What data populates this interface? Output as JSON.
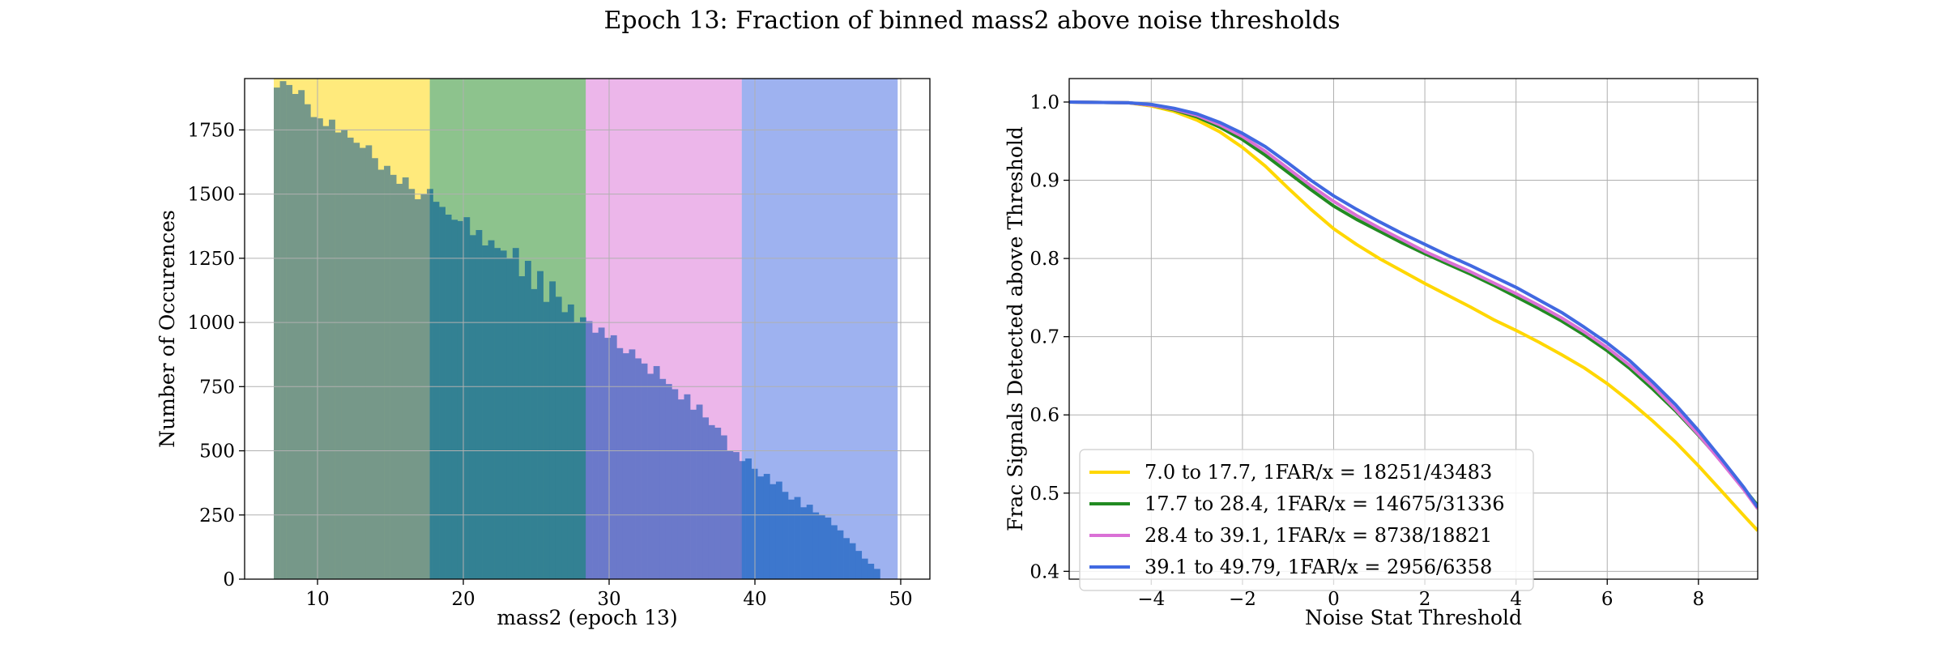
{
  "suptitle": "Epoch 13: Fraction of binned mass2 above noise thresholds",
  "chart_data": [
    {
      "type": "bar",
      "subtype": "histogram",
      "xlabel": "mass2 (epoch 13)",
      "ylabel": "Number of Occurences",
      "xlim": [
        5,
        52
      ],
      "ylim": [
        0,
        1950
      ],
      "xticks": [
        10,
        20,
        30,
        40,
        50
      ],
      "yticks": [
        0,
        250,
        500,
        750,
        1000,
        1250,
        1500,
        1750
      ],
      "grid": true,
      "bin_start": 7.0,
      "bin_width": 0.42,
      "bar_color": "#3b7dc4",
      "values": [
        1915,
        1940,
        1925,
        1890,
        1905,
        1850,
        1800,
        1795,
        1765,
        1790,
        1740,
        1750,
        1720,
        1700,
        1680,
        1690,
        1640,
        1595,
        1610,
        1575,
        1540,
        1565,
        1520,
        1480,
        1500,
        1520,
        1470,
        1450,
        1420,
        1400,
        1395,
        1410,
        1340,
        1360,
        1300,
        1320,
        1290,
        1280,
        1250,
        1290,
        1180,
        1240,
        1130,
        1200,
        1080,
        1160,
        1100,
        1040,
        1070,
        1000,
        1020,
        1005,
        960,
        980,
        940,
        950,
        900,
        880,
        895,
        860,
        840,
        800,
        830,
        780,
        760,
        740,
        700,
        720,
        660,
        680,
        630,
        600,
        590,
        560,
        500,
        495,
        460,
        470,
        430,
        400,
        410,
        370,
        380,
        340,
        310,
        320,
        280,
        290,
        260,
        250,
        240,
        210,
        190,
        160,
        140,
        110,
        80,
        60,
        40
      ],
      "bands": [
        {
          "from": 7.0,
          "to": 17.7,
          "color": "#ffd700"
        },
        {
          "from": 17.7,
          "to": 28.4,
          "color": "#228b22"
        },
        {
          "from": 28.4,
          "to": 39.1,
          "color": "#da70d6"
        },
        {
          "from": 39.1,
          "to": 49.79,
          "color": "#4169e1"
        }
      ]
    },
    {
      "type": "line",
      "xlabel": "Noise Stat Threshold",
      "ylabel": "Frac Signals Detected above Threshold",
      "xlim": [
        -5.8,
        9.3
      ],
      "ylim": [
        0.39,
        1.03
      ],
      "xticks": [
        -4,
        -2,
        0,
        2,
        4,
        6,
        8
      ],
      "yticks": [
        0.4,
        0.5,
        0.6,
        0.7,
        0.8,
        0.9,
        1.0
      ],
      "grid": true,
      "legend_position": "lower-left",
      "series": [
        {
          "name": "7.0 to 17.7, 1FAR/x = 18251/43483",
          "color": "#ffd700",
          "x": [
            -5.8,
            -4.5,
            -4,
            -3.5,
            -3,
            -2.5,
            -2,
            -1.5,
            -1,
            -0.5,
            0,
            0.5,
            1,
            1.5,
            2,
            2.5,
            3,
            3.5,
            4,
            4.5,
            5,
            5.5,
            6,
            6.5,
            7,
            7.5,
            8,
            8.5,
            9,
            9.3
          ],
          "y": [
            1.0,
            0.999,
            0.995,
            0.988,
            0.977,
            0.962,
            0.942,
            0.918,
            0.89,
            0.863,
            0.838,
            0.818,
            0.8,
            0.784,
            0.768,
            0.753,
            0.738,
            0.722,
            0.708,
            0.693,
            0.677,
            0.66,
            0.64,
            0.617,
            0.592,
            0.565,
            0.535,
            0.503,
            0.471,
            0.452
          ]
        },
        {
          "name": "17.7 to 28.4, 1FAR/x = 14675/31336",
          "color": "#228b22",
          "x": [
            -5.8,
            -4.5,
            -4,
            -3.5,
            -3,
            -2.5,
            -2,
            -1.5,
            -1,
            -0.5,
            0,
            0.5,
            1,
            1.5,
            2,
            2.5,
            3,
            3.5,
            4,
            4.5,
            5,
            5.5,
            6,
            6.5,
            7,
            7.5,
            8,
            8.5,
            9,
            9.3
          ],
          "y": [
            1.0,
            0.999,
            0.996,
            0.99,
            0.981,
            0.968,
            0.952,
            0.932,
            0.91,
            0.888,
            0.867,
            0.85,
            0.835,
            0.82,
            0.806,
            0.793,
            0.78,
            0.766,
            0.751,
            0.736,
            0.72,
            0.702,
            0.682,
            0.659,
            0.633,
            0.605,
            0.574,
            0.541,
            0.506,
            0.484
          ]
        },
        {
          "name": "28.4 to 39.1, 1FAR/x = 8738/18821",
          "color": "#da70d6",
          "x": [
            -5.8,
            -4.5,
            -4,
            -3.5,
            -3,
            -2.5,
            -2,
            -1.5,
            -1,
            -0.5,
            0,
            0.5,
            1,
            1.5,
            2,
            2.5,
            3,
            3.5,
            4,
            4.5,
            5,
            5.5,
            6,
            6.5,
            7,
            7.5,
            8,
            8.5,
            9,
            9.3
          ],
          "y": [
            1.0,
            0.999,
            0.996,
            0.991,
            0.983,
            0.971,
            0.956,
            0.937,
            0.915,
            0.893,
            0.873,
            0.855,
            0.839,
            0.824,
            0.809,
            0.796,
            0.783,
            0.769,
            0.755,
            0.74,
            0.724,
            0.706,
            0.686,
            0.663,
            0.637,
            0.607,
            0.575,
            0.54,
            0.504,
            0.48
          ]
        },
        {
          "name": "39.1 to 49.79, 1FAR/x = 2956/6358",
          "color": "#4169e1",
          "x": [
            -5.8,
            -4.5,
            -4,
            -3.5,
            -3,
            -2.5,
            -2,
            -1.5,
            -1,
            -0.5,
            0,
            0.5,
            1,
            1.5,
            2,
            2.5,
            3,
            3.5,
            4,
            4.5,
            5,
            5.5,
            6,
            6.5,
            7,
            7.5,
            8,
            8.5,
            9,
            9.3
          ],
          "y": [
            1.0,
            0.999,
            0.997,
            0.992,
            0.985,
            0.974,
            0.96,
            0.943,
            0.922,
            0.9,
            0.88,
            0.863,
            0.847,
            0.832,
            0.818,
            0.804,
            0.791,
            0.777,
            0.763,
            0.747,
            0.731,
            0.712,
            0.692,
            0.669,
            0.642,
            0.613,
            0.58,
            0.544,
            0.507,
            0.482
          ]
        }
      ]
    }
  ]
}
